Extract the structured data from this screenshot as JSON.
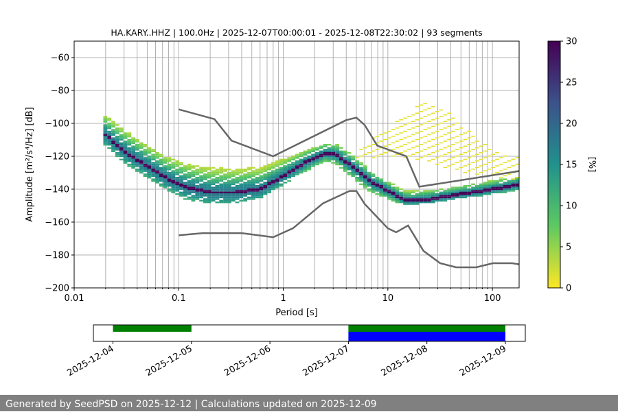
{
  "chart_data": [
    {
      "type": "heatmap",
      "title": "HA.KARY..HHZ | 100.0Hz | 2025-12-07T00:00:01 - 2025-12-08T22:30:02 | 93 segments",
      "xlabel": "Period [s]",
      "ylabel": "Amplitude [m²/s⁴/Hz] [dB]",
      "x_scale": "log",
      "xlim": [
        0.01,
        180
      ],
      "ylim": [
        -200,
        -50
      ],
      "x_ticks": [
        {
          "value": 0.01,
          "label": "0.01"
        },
        {
          "value": 0.1,
          "label": "0.1"
        },
        {
          "value": 1,
          "label": "1"
        },
        {
          "value": 10,
          "label": "10"
        },
        {
          "value": 100,
          "label": "100"
        }
      ],
      "y_ticks": [
        {
          "value": -60,
          "label": "−60"
        },
        {
          "value": -80,
          "label": "−80"
        },
        {
          "value": -100,
          "label": "−100"
        },
        {
          "value": -120,
          "label": "−120"
        },
        {
          "value": -140,
          "label": "−140"
        },
        {
          "value": -160,
          "label": "−160"
        },
        {
          "value": -180,
          "label": "−180"
        },
        {
          "value": -200,
          "label": "−200"
        }
      ],
      "grid": true,
      "colorbar": {
        "label": "[%]",
        "colormap": "viridis",
        "range": [
          0,
          30
        ],
        "ticks": [
          "0",
          "5",
          "10",
          "15",
          "20",
          "25",
          "30"
        ]
      },
      "mode_curve": {
        "name": "mode",
        "x": [
          0.02,
          0.03,
          0.05,
          0.08,
          0.12,
          0.2,
          0.35,
          0.6,
          1.0,
          1.6,
          2.5,
          3.2,
          4.5,
          7.0,
          10.0,
          15.0,
          25.0,
          50.0,
          100.0,
          180.0
        ],
        "y": [
          -107,
          -117,
          -126,
          -134,
          -139,
          -142,
          -142,
          -140,
          -132,
          -124,
          -118,
          -119,
          -126,
          -136,
          -141,
          -147,
          -146,
          -143,
          -140,
          -137
        ]
      },
      "density_band": {
        "x": [
          0.02,
          0.03,
          0.05,
          0.08,
          0.12,
          0.2,
          0.35,
          0.6,
          1.0,
          1.6,
          2.5,
          3.2,
          4.5,
          7.0,
          10.0,
          15.0,
          25.0,
          50.0,
          100.0,
          180.0
        ],
        "upper": [
          -95,
          -104,
          -114,
          -121,
          -125,
          -127,
          -128,
          -127,
          -122,
          -117,
          -113,
          -113,
          -119,
          -130,
          -136,
          -141,
          -141,
          -139,
          -135,
          -133
        ],
        "lower": [
          -113,
          -124,
          -133,
          -141,
          -146,
          -148,
          -148,
          -145,
          -137,
          -129,
          -123,
          -124,
          -132,
          -142,
          -146,
          -149,
          -148,
          -145,
          -143,
          -140
        ]
      },
      "scattered_spurs": {
        "x": [
          5.0,
          7.0,
          10.0,
          15.0,
          22.0,
          35.0,
          55.0,
          90.0,
          150.0
        ],
        "upper": [
          -118,
          -110,
          -103,
          -95,
          -87,
          -92,
          -103,
          -114,
          -121
        ],
        "lower": [
          -124,
          -121,
          -119,
          -121,
          -123,
          -127,
          -130,
          -132,
          -134
        ]
      },
      "noise_models": [
        {
          "name": "NHNM",
          "x": [
            0.1,
            0.22,
            0.32,
            0.8,
            4.0,
            5.0,
            6.0,
            7.9,
            15.0,
            20.0,
            180.0
          ],
          "y": [
            -91.5,
            -97.4,
            -110.5,
            -120.0,
            -98.0,
            -96.5,
            -101.0,
            -113.5,
            -120.0,
            -138.5,
            -129.0
          ]
        },
        {
          "name": "NLNM",
          "x": [
            0.1,
            0.17,
            0.4,
            0.8,
            1.24,
            2.4,
            4.3,
            5.0,
            6.0,
            10.0,
            12.0,
            15.6,
            21.9,
            31.6,
            45.0,
            70.0,
            101.0,
            154.0,
            180.0
          ],
          "y": [
            -168.0,
            -166.7,
            -166.7,
            -169.2,
            -163.7,
            -148.6,
            -141.1,
            -141.1,
            -149.0,
            -163.8,
            -166.2,
            -162.1,
            -177.5,
            -185.0,
            -187.5,
            -187.5,
            -185.0,
            -185.0,
            -185.7
          ]
        }
      ]
    },
    {
      "type": "timeline",
      "x_ticks": [
        "2025-12-04",
        "2025-12-05",
        "2025-12-06",
        "2025-12-07",
        "2025-12-08",
        "2025-12-09"
      ],
      "data_availability": [
        {
          "start": "2025-12-04",
          "end": "2025-12-05",
          "color": "#008000"
        },
        {
          "start": "2025-12-07",
          "end": "2025-12-09",
          "color": "#008000"
        }
      ],
      "psd_coverage": [
        {
          "start": "2025-12-07",
          "end": "2025-12-09",
          "color": "#0000ff"
        }
      ]
    }
  ],
  "footer": {
    "text": "Generated by SeedPSD on 2025-12-12 | Calculations updated on 2025-12-09"
  }
}
